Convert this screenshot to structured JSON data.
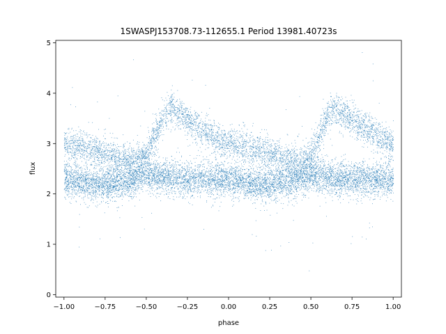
{
  "chart_data": {
    "type": "scatter",
    "title": "1SWASPJ153708.73-112655.1 Period 13981.40723s",
    "xlabel": "phase",
    "ylabel": "flux",
    "xlim": [
      -1.05,
      1.05
    ],
    "ylim": [
      -0.05,
      5.05
    ],
    "x_ticks": [
      -1.0,
      -0.75,
      -0.5,
      -0.25,
      0.0,
      0.25,
      0.5,
      0.75,
      1.0
    ],
    "x_tick_labels": [
      "−1.00",
      "−0.75",
      "−0.50",
      "−0.25",
      "0.00",
      "0.25",
      "0.50",
      "0.75",
      "1.00"
    ],
    "y_ticks": [
      0,
      1,
      2,
      3,
      4,
      5
    ],
    "y_tick_labels": [
      "0",
      "1",
      "2",
      "3",
      "4",
      "5"
    ],
    "grid": false,
    "marker_color": "#1f77b4",
    "series": [
      {
        "x_range": [
          -1.0,
          1.0
        ],
        "components": [
          {
            "phase": [
              -1.0,
              -0.95,
              -0.9,
              -0.85,
              -0.8,
              -0.75,
              -0.7,
              -0.65,
              -0.6,
              -0.55,
              -0.5,
              -0.45,
              -0.4,
              -0.35,
              -0.3,
              -0.25,
              -0.2,
              -0.15,
              -0.1,
              -0.05,
              0.0
            ],
            "flux": [
              2.3,
              2.28,
              2.25,
              2.22,
              2.2,
              2.2,
              2.22,
              2.25,
              2.28,
              2.35,
              2.4,
              2.38,
              2.35,
              2.33,
              2.32,
              2.3,
              2.3,
              2.3,
              2.3,
              2.3,
              2.3
            ],
            "count": 8000
          },
          {
            "phase": [
              -1.0,
              -0.9,
              -0.8,
              -0.7,
              -0.6,
              -0.5,
              -0.45,
              -0.4,
              -0.35,
              -0.3,
              -0.2,
              -0.1,
              0.0
            ],
            "flux": [
              3.0,
              2.95,
              2.85,
              2.75,
              2.65,
              2.75,
              3.15,
              3.55,
              3.7,
              3.6,
              3.35,
              3.15,
              2.95
            ],
            "count": 5000
          }
        ],
        "repeat_period": 1.0
      }
    ]
  }
}
